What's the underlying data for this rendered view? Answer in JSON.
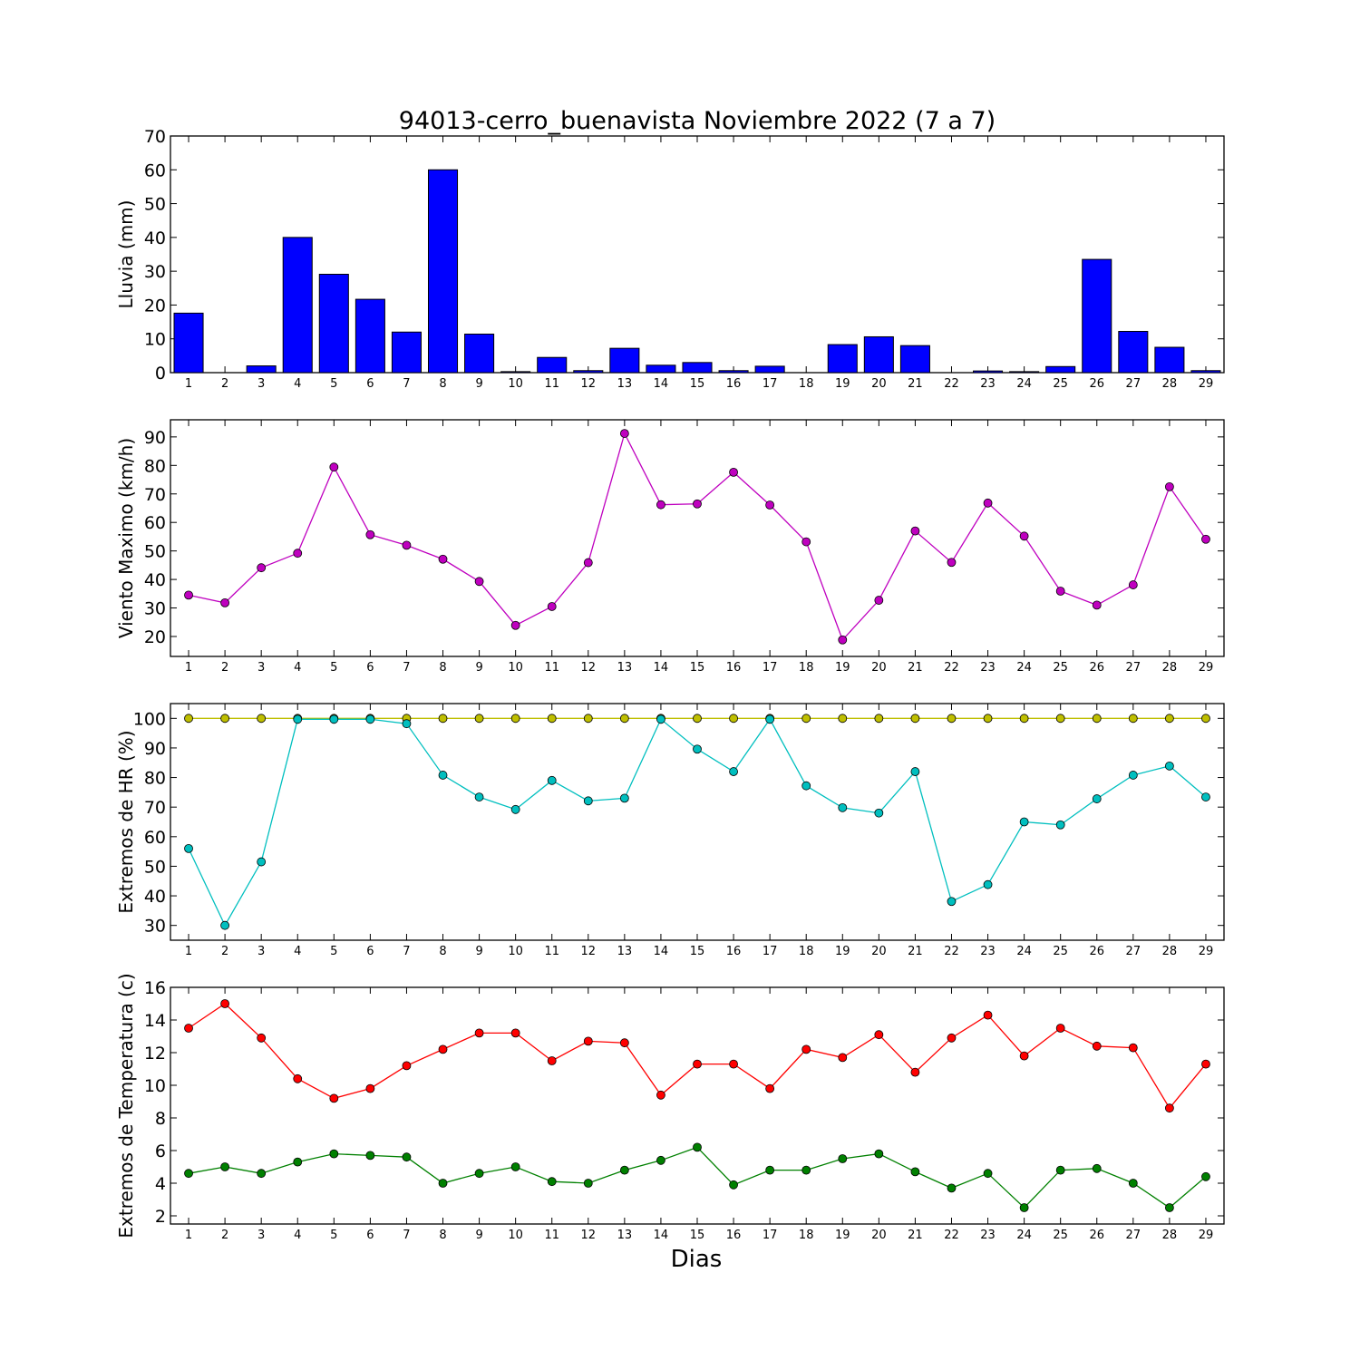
{
  "title": "94013-cerro_buenavista Noviembre 2022  (7 a 7)",
  "xlabel": "Dias",
  "colors": {
    "bar": "#0000ff",
    "wind": "#bf00bf",
    "hr_max": "#bfbf00",
    "hr_min": "#00bfbf",
    "t_max": "#ff0000",
    "t_min": "#008000"
  },
  "chart_data": [
    {
      "type": "bar",
      "ylabel": "Lluvia (mm)",
      "ylim": [
        0,
        70
      ],
      "yticks": [
        0,
        10,
        20,
        30,
        40,
        50,
        60,
        70
      ],
      "categories": [
        1,
        2,
        3,
        4,
        5,
        6,
        7,
        8,
        9,
        10,
        11,
        12,
        13,
        14,
        15,
        16,
        17,
        18,
        19,
        20,
        21,
        22,
        23,
        24,
        25,
        26,
        27,
        28,
        29
      ],
      "series": [
        {
          "values": [
            17.6,
            0,
            2.0,
            40.0,
            29.1,
            21.7,
            12.0,
            60.0,
            11.4,
            0.3,
            4.5,
            0.6,
            7.2,
            2.2,
            3.0,
            0.6,
            1.9,
            0,
            8.3,
            10.6,
            8.0,
            0,
            0.5,
            0.3,
            1.8,
            33.5,
            12.2,
            7.5,
            0.6
          ],
          "color": "#0000ff"
        }
      ]
    },
    {
      "type": "line",
      "ylabel": "Viento Maximo (km/h)",
      "ylim": [
        13,
        96
      ],
      "yticks": [
        20,
        30,
        40,
        50,
        60,
        70,
        80,
        90
      ],
      "x": [
        1,
        2,
        3,
        4,
        5,
        6,
        7,
        8,
        9,
        10,
        11,
        12,
        13,
        14,
        15,
        16,
        17,
        18,
        19,
        20,
        21,
        22,
        23,
        24,
        25,
        26,
        27,
        28,
        29
      ],
      "series": [
        {
          "values": [
            34.5,
            31.8,
            44.1,
            49.2,
            79.4,
            55.7,
            52.0,
            47.1,
            39.3,
            23.9,
            30.5,
            45.9,
            91.2,
            66.2,
            66.5,
            77.6,
            66.1,
            53.2,
            18.8,
            32.7,
            57.0,
            46.0,
            66.8,
            55.2,
            35.9,
            31.0,
            38.1,
            72.5,
            54.1
          ],
          "color": "#bf00bf"
        }
      ]
    },
    {
      "type": "line",
      "ylabel": "Extremos de HR (%)",
      "ylim": [
        25,
        105
      ],
      "yticks": [
        30,
        40,
        50,
        60,
        70,
        80,
        90,
        100
      ],
      "x": [
        1,
        2,
        3,
        4,
        5,
        6,
        7,
        8,
        9,
        10,
        11,
        12,
        13,
        14,
        15,
        16,
        17,
        18,
        19,
        20,
        21,
        22,
        23,
        24,
        25,
        26,
        27,
        28,
        29
      ],
      "series": [
        {
          "values": [
            100,
            100,
            100,
            100,
            100,
            100,
            100,
            100,
            100,
            100,
            100,
            100,
            100,
            100,
            100,
            100,
            100,
            100,
            100,
            100,
            100,
            100,
            100,
            100,
            100,
            100,
            100,
            100,
            100
          ],
          "color": "#bfbf00"
        },
        {
          "values": [
            56,
            30,
            51.5,
            99.7,
            99.7,
            99.7,
            98.2,
            80.8,
            73.4,
            69.2,
            79,
            72.1,
            73,
            99.7,
            89.6,
            82,
            99.7,
            77.2,
            69.8,
            68,
            82,
            38.1,
            43.8,
            65,
            64,
            72.8,
            80.8,
            83.9,
            73.4
          ],
          "color": "#00bfbf"
        }
      ]
    },
    {
      "type": "line",
      "ylabel": "Extremos de Temperatura (c)",
      "ylim": [
        1.5,
        16
      ],
      "yticks": [
        2,
        4,
        6,
        8,
        10,
        12,
        14,
        16
      ],
      "x": [
        1,
        2,
        3,
        4,
        5,
        6,
        7,
        8,
        9,
        10,
        11,
        12,
        13,
        14,
        15,
        16,
        17,
        18,
        19,
        20,
        21,
        22,
        23,
        24,
        25,
        26,
        27,
        28,
        29
      ],
      "series": [
        {
          "values": [
            13.5,
            15.0,
            12.9,
            10.4,
            9.2,
            9.8,
            11.2,
            12.2,
            13.2,
            13.2,
            11.5,
            12.7,
            12.6,
            9.4,
            11.3,
            11.3,
            9.8,
            12.2,
            11.7,
            13.1,
            10.8,
            12.9,
            14.3,
            11.8,
            13.5,
            12.4,
            12.3,
            8.6,
            11.3
          ],
          "color": "#ff0000"
        },
        {
          "values": [
            4.6,
            5.0,
            4.6,
            5.3,
            5.8,
            5.7,
            5.6,
            4.0,
            4.6,
            5.0,
            4.1,
            4.0,
            4.8,
            5.4,
            6.2,
            3.9,
            4.8,
            4.8,
            5.5,
            5.8,
            4.7,
            3.7,
            4.6,
            2.5,
            4.8,
            4.9,
            4.0,
            2.5,
            4.4
          ],
          "color": "#008000"
        }
      ]
    }
  ]
}
